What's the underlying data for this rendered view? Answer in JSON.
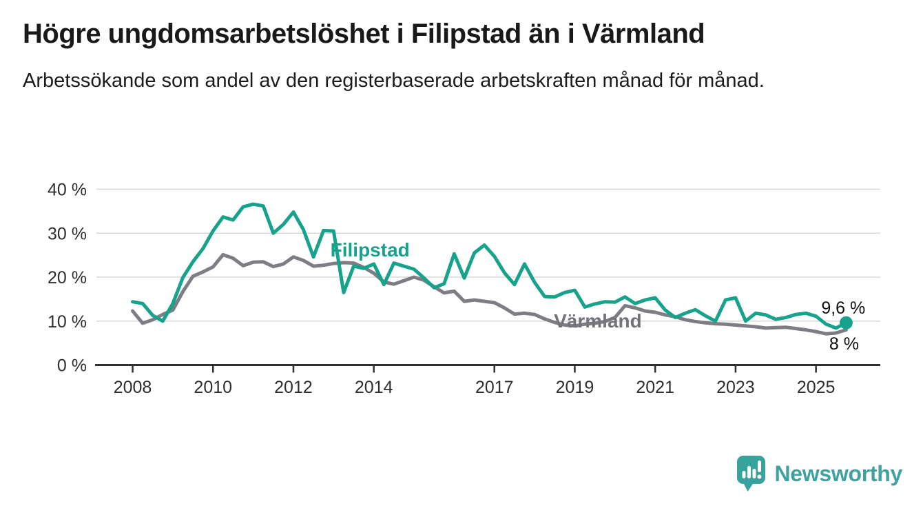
{
  "header": {
    "title": "Högre ungdomsarbetslöshet i Filipstad än i Värmland",
    "subtitle": "Arbetssökande som andel av den registerbaserade arbetskraften månad för månad."
  },
  "chart_data": {
    "type": "line",
    "title": "Högre ungdomsarbetslöshet i Filipstad än i Värmland",
    "unit": "%",
    "x_start": 2008.0,
    "x_step": 0.25,
    "x_axis": {
      "range": [
        2007.1,
        2026.6
      ],
      "ticks": [
        2008,
        2010,
        2012,
        2014,
        2017,
        2019,
        2021,
        2023,
        2025
      ]
    },
    "y_axis": {
      "range": [
        0,
        42
      ],
      "ticks": [
        0,
        10,
        20,
        30,
        40
      ],
      "tick_suffix": " %",
      "gridlines": true
    },
    "legend_position": "none",
    "series": [
      {
        "name": "Filipstad",
        "color": "#16A28B",
        "values": [
          14.4,
          14.0,
          11.3,
          10.0,
          14.0,
          19.9,
          23.5,
          26.5,
          30.5,
          33.7,
          33.0,
          36.0,
          36.6,
          36.2,
          30.0,
          32.0,
          34.8,
          30.8,
          24.6,
          30.6,
          30.5,
          16.5,
          22.5,
          22.0,
          23.0,
          18.3,
          23.2,
          22.5,
          21.8,
          19.8,
          17.6,
          18.5,
          25.3,
          19.8,
          25.5,
          27.3,
          24.7,
          21.0,
          18.3,
          23.0,
          18.8,
          15.6,
          15.5,
          16.5,
          17.0,
          13.2,
          13.9,
          14.4,
          14.3,
          15.5,
          14.0,
          14.8,
          15.3,
          12.5,
          10.8,
          11.8,
          12.6,
          11.2,
          10.0,
          14.8,
          15.3,
          10.0,
          11.8,
          11.4,
          10.4,
          10.8,
          11.5,
          11.8,
          11.1,
          9.3,
          8.4,
          9.6
        ]
      },
      {
        "name": "Värmland",
        "color": "#7D7D84",
        "values": [
          12.3,
          9.5,
          10.3,
          11.5,
          12.5,
          16.7,
          20.2,
          21.2,
          22.3,
          25.1,
          24.3,
          22.6,
          23.4,
          23.5,
          22.4,
          23.0,
          24.6,
          23.8,
          22.5,
          22.7,
          23.1,
          23.3,
          23.2,
          22.2,
          20.9,
          18.9,
          18.4,
          19.2,
          20.0,
          19.3,
          17.8,
          16.4,
          16.8,
          14.5,
          14.8,
          14.5,
          14.2,
          13.0,
          11.6,
          11.8,
          11.5,
          10.5,
          9.7,
          9.1,
          8.9,
          9.3,
          9.5,
          9.9,
          10.8,
          13.5,
          13.0,
          12.3,
          12.0,
          11.4,
          11.0,
          10.3,
          9.9,
          9.6,
          9.4,
          9.3,
          9.1,
          8.9,
          8.7,
          8.4,
          8.5,
          8.6,
          8.3,
          8.0,
          7.6,
          7.1,
          7.3,
          8.0
        ]
      }
    ],
    "series_labels": [
      {
        "text": "Filipstad",
        "color": "#16A28B",
        "x": 2012.92,
        "y": 24.7,
        "anchor": "start"
      },
      {
        "text": "Värmland",
        "color": "#73737A",
        "x": 2018.48,
        "y": 8.55,
        "anchor": "start"
      }
    ],
    "end_labels": [
      {
        "series": "Filipstad",
        "text": "9,6 %",
        "x": 2025.68,
        "y": 11.7
      },
      {
        "series": "Värmland",
        "text": "8 %",
        "x": 2025.7,
        "y": 3.5
      }
    ],
    "end_marker": {
      "series": "Filipstad",
      "value": 9.6
    }
  },
  "footer": {
    "brand": "Newsworthy",
    "brand_color": "#3FA2A0",
    "logo_bubble_color": "#38A29D",
    "logo_icon": "newsworthy-speech-bubble-chart-icon"
  }
}
